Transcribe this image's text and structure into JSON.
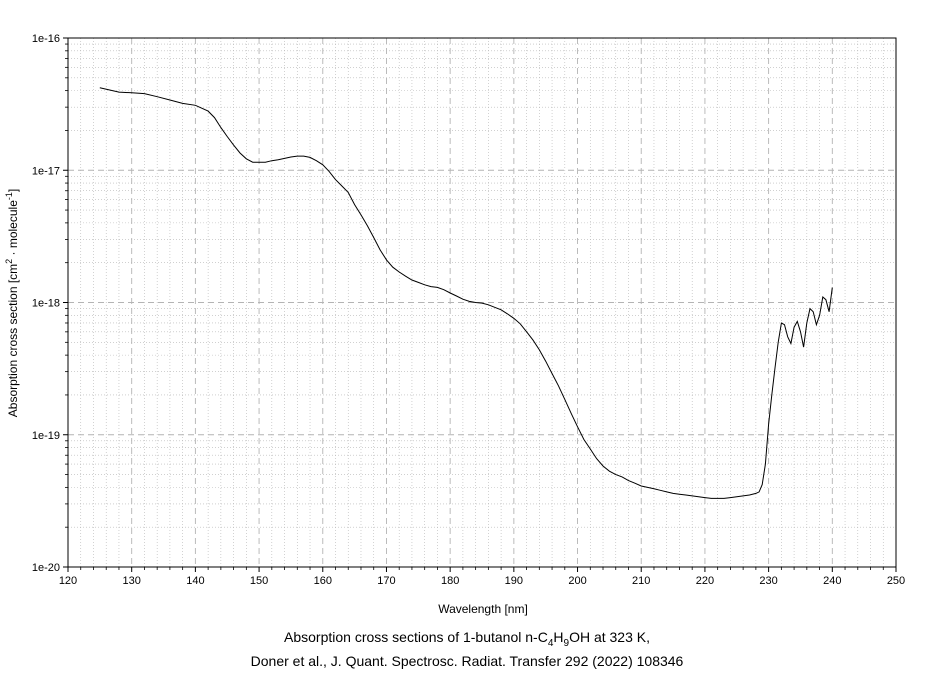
{
  "chart_data": {
    "type": "line",
    "title_line_1_prefix": "Absorption cross sections of 1-butanol n-C",
    "formula_sub_1": "4",
    "formula_mid": "H",
    "formula_sub_2": "9",
    "title_line_1_suffix": "OH at 323 K,",
    "title_line_2": "Doner et al., J. Quant. Spectrosc. Radiat. Transfer 292 (2022) 108346",
    "xlabel": "Wavelength [nm]",
    "ylabel_prefix": "Absorption cross section [cm",
    "ylabel_sup_1": "2",
    "ylabel_mid": " · molecule",
    "ylabel_sup_2": "-1",
    "ylabel_suffix": "]",
    "xlim": [
      120,
      250
    ],
    "ylim": [
      1e-20,
      1e-16
    ],
    "yscale": "log",
    "grid": true,
    "x_ticks": [
      "120",
      "130",
      "140",
      "150",
      "160",
      "170",
      "180",
      "190",
      "200",
      "210",
      "220",
      "230",
      "240",
      "250"
    ],
    "y_ticks": [
      "1e-20",
      "1e-19",
      "1e-18",
      "1e-17",
      "1e-16"
    ],
    "line_color": "#000000",
    "grid_color": "#b4b4b4",
    "series": [
      {
        "x": [
          125,
          128,
          130,
          132,
          134,
          136,
          138,
          140,
          142,
          143,
          144,
          145,
          146,
          147,
          148,
          149,
          150,
          151,
          152,
          153,
          154,
          155,
          156,
          157,
          158,
          159,
          160,
          161,
          162,
          163,
          164,
          165,
          166,
          167,
          168,
          169,
          170,
          171,
          172,
          173,
          174,
          175,
          176,
          177,
          178,
          179,
          180,
          181,
          182,
          183,
          184,
          185,
          186,
          187,
          188,
          189,
          190,
          191,
          192,
          193,
          194,
          195,
          196,
          197,
          198,
          199,
          200,
          201,
          202,
          203,
          204,
          205,
          206,
          207,
          208,
          209,
          210,
          211,
          212,
          213,
          214,
          215,
          216,
          217,
          218,
          219,
          220,
          221,
          222,
          223,
          224,
          225,
          226,
          227,
          228,
          228.5,
          229,
          229.5,
          230,
          230.5,
          231,
          231.5,
          232,
          232.5,
          233,
          233.5,
          234,
          234.5,
          235,
          235.5,
          236,
          236.5,
          237,
          237.5,
          238,
          238.5,
          239,
          239.5,
          240
        ],
        "y": [
          4.2e-17,
          3.9e-17,
          3.85e-17,
          3.8e-17,
          3.6e-17,
          3.4e-17,
          3.2e-17,
          3.1e-17,
          2.8e-17,
          2.5e-17,
          2.1e-17,
          1.8e-17,
          1.55e-17,
          1.35e-17,
          1.22e-17,
          1.15e-17,
          1.15e-17,
          1.15e-17,
          1.18e-17,
          1.2e-17,
          1.23e-17,
          1.26e-17,
          1.28e-17,
          1.28e-17,
          1.25e-17,
          1.18e-17,
          1.1e-17,
          9.8e-18,
          8.5e-18,
          7.6e-18,
          6.8e-18,
          5.5e-18,
          4.6e-18,
          3.8e-18,
          3.1e-18,
          2.5e-18,
          2.1e-18,
          1.85e-18,
          1.7e-18,
          1.58e-18,
          1.48e-18,
          1.42e-18,
          1.36e-18,
          1.32e-18,
          1.3e-18,
          1.25e-18,
          1.18e-18,
          1.12e-18,
          1.06e-18,
          1.02e-18,
          1e-18,
          9.9e-19,
          9.6e-19,
          9.2e-19,
          8.8e-19,
          8.2e-19,
          7.6e-19,
          6.9e-19,
          6e-19,
          5.2e-19,
          4.4e-19,
          3.6e-19,
          2.9e-19,
          2.35e-19,
          1.85e-19,
          1.45e-19,
          1.15e-19,
          9.2e-20,
          7.8e-20,
          6.6e-20,
          5.8e-20,
          5.3e-20,
          5e-20,
          4.8e-20,
          4.5e-20,
          4.3e-20,
          4.1e-20,
          4e-20,
          3.9e-20,
          3.8e-20,
          3.7e-20,
          3.6e-20,
          3.55e-20,
          3.5e-20,
          3.45e-20,
          3.4e-20,
          3.35e-20,
          3.3e-20,
          3.3e-20,
          3.3e-20,
          3.35e-20,
          3.4e-20,
          3.45e-20,
          3.5e-20,
          3.6e-20,
          3.7e-20,
          4.2e-20,
          6e-20,
          1.2e-19,
          2e-19,
          3.2e-19,
          5e-19,
          7e-19,
          6.8e-19,
          5.5e-19,
          4.9e-19,
          6.5e-19,
          7.2e-19,
          6e-19,
          4.6e-19,
          7e-19,
          9e-19,
          8.5e-19,
          6.8e-19,
          8e-19,
          1.1e-18,
          1.05e-18,
          8.5e-19,
          1.3e-18
        ]
      }
    ]
  }
}
